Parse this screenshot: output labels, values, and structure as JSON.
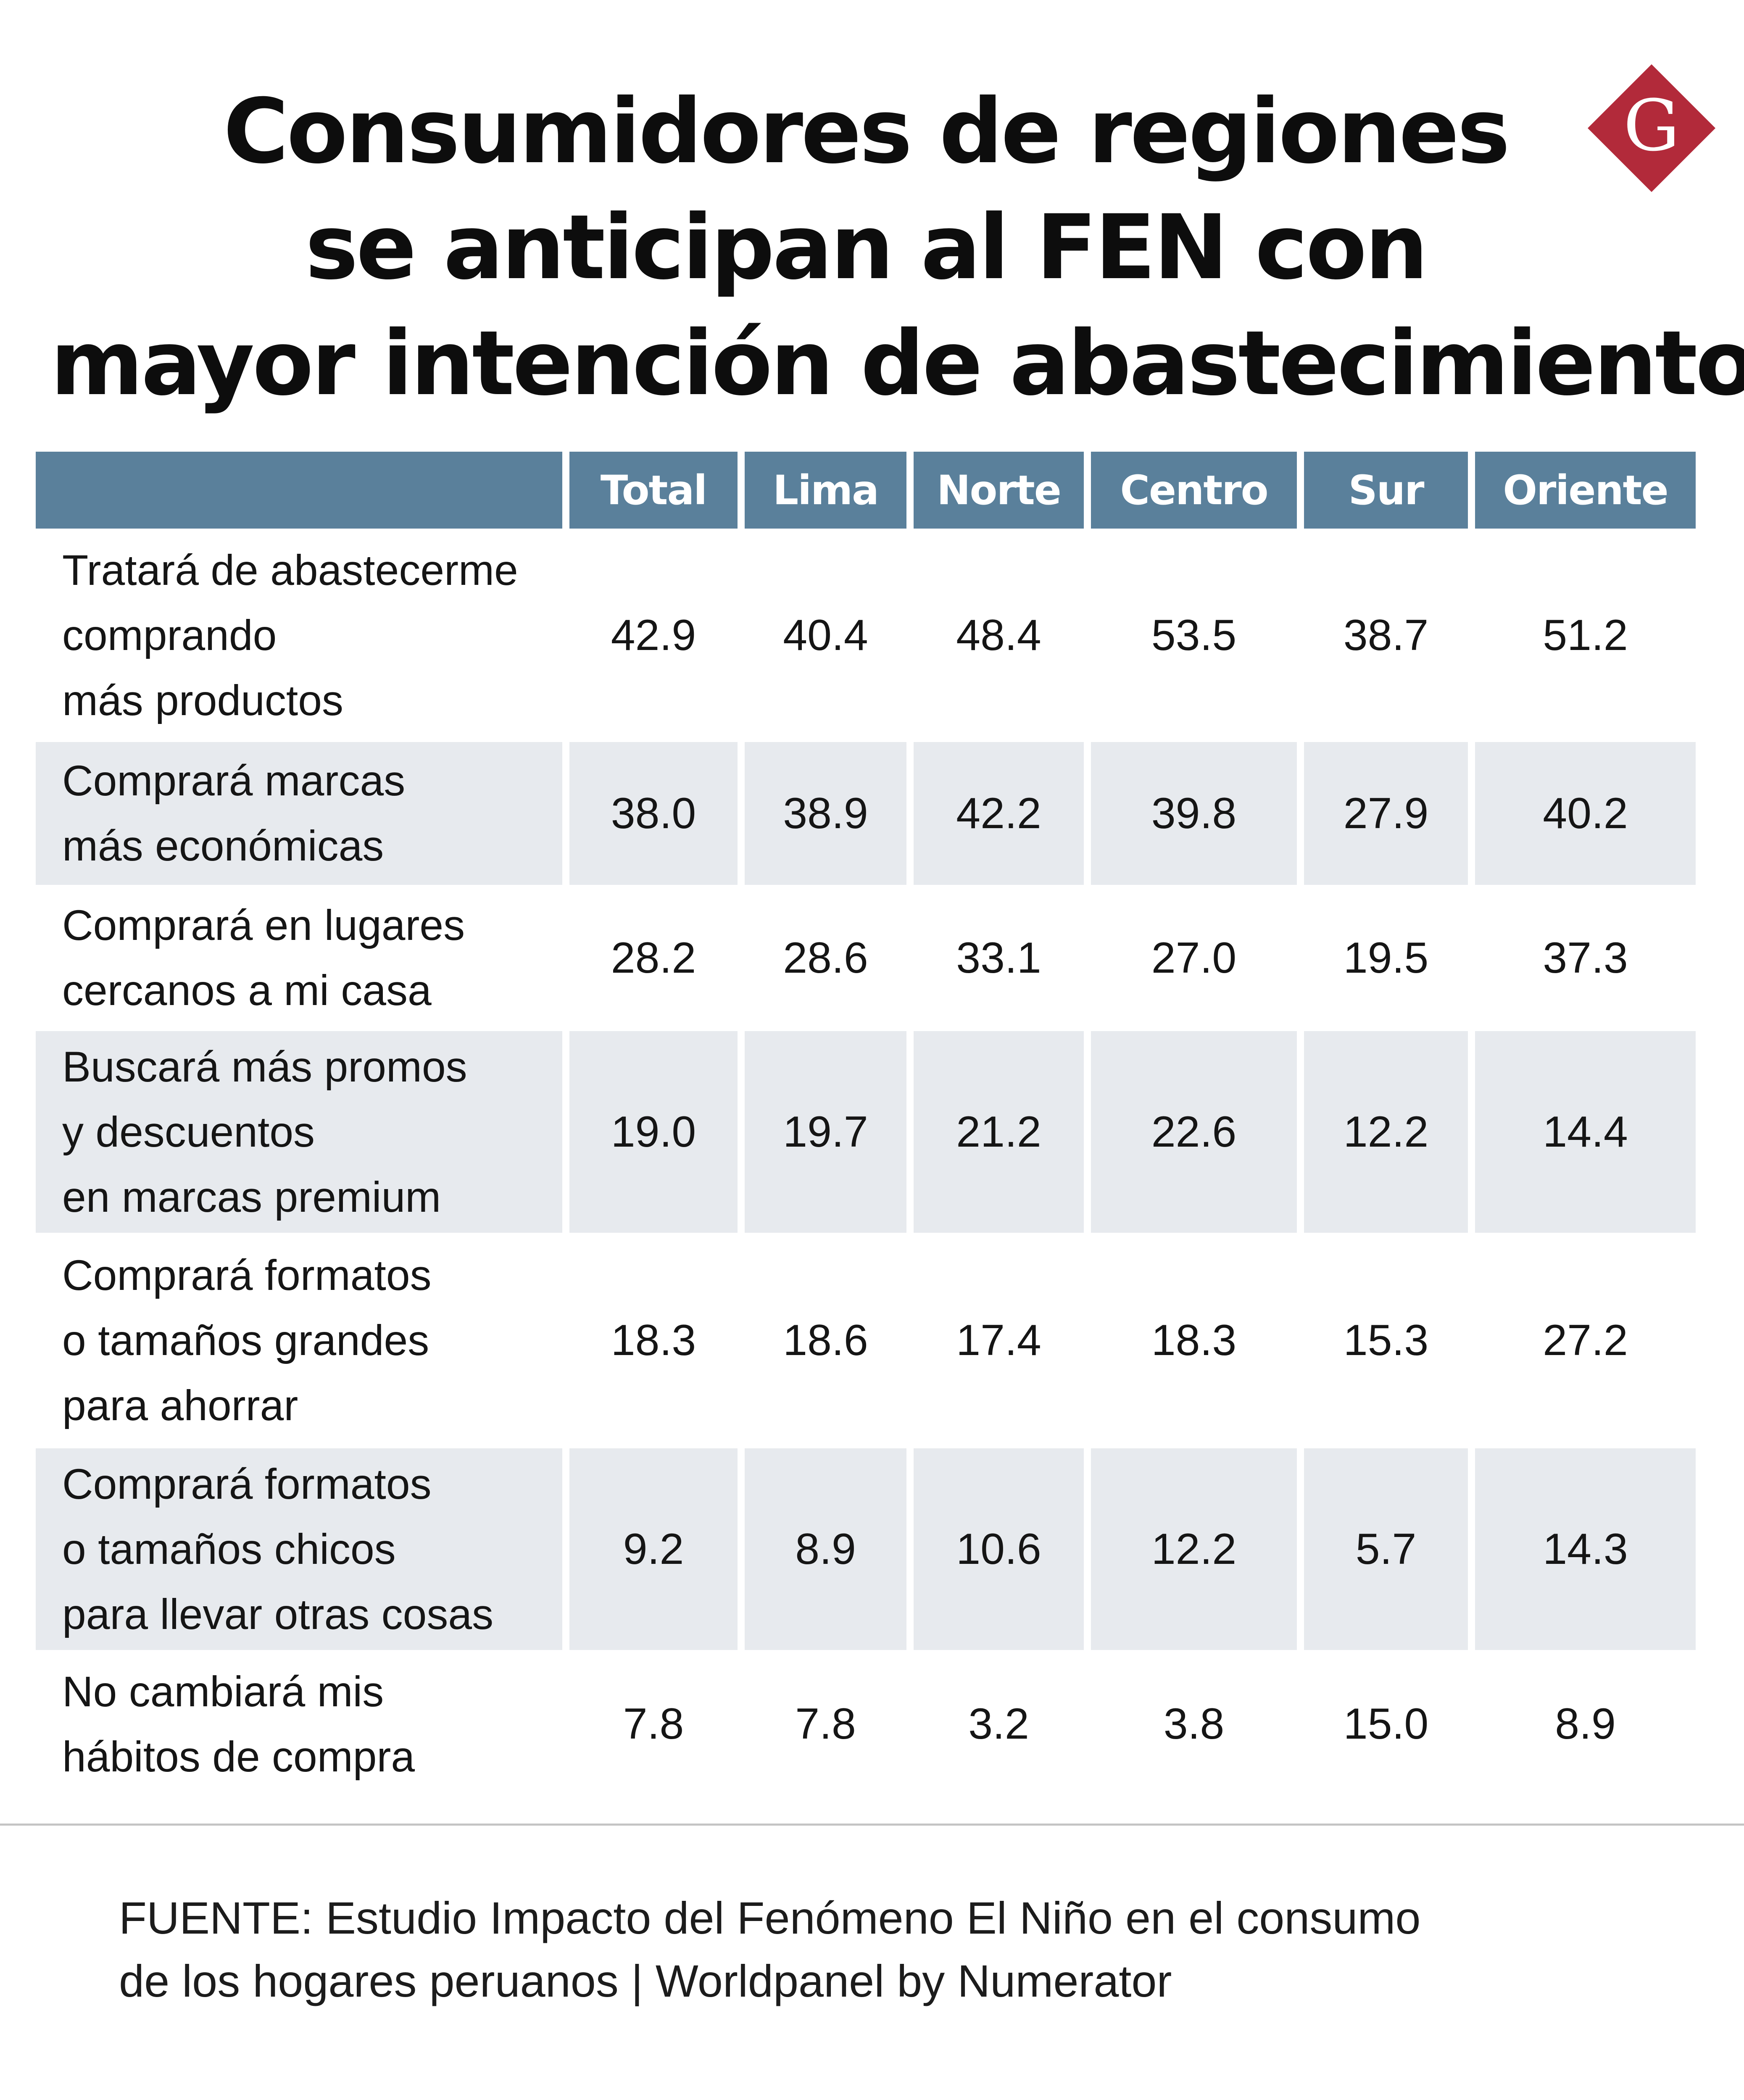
{
  "chart_data": {
    "type": "table",
    "title": "Consumidores de regiones se anticipan al FEN con mayor intención de abastecimiento",
    "title_lines": [
      "Consumidores de regiones",
      "se anticipan al FEN con",
      "mayor intención de abastecimiento"
    ],
    "columns": [
      "Total",
      "Lima",
      "Norte",
      "Centro",
      "Sur",
      "Oriente"
    ],
    "rows": [
      {
        "label": "Tratará de abastecerme\ncomprando\nmás productos",
        "values": [
          "42.9",
          "40.4",
          "48.4",
          "53.5",
          "38.7",
          "51.2"
        ]
      },
      {
        "label": "Comprará marcas\nmás económicas",
        "values": [
          "38.0",
          "38.9",
          "42.2",
          "39.8",
          "27.9",
          "40.2"
        ]
      },
      {
        "label": "Comprará en lugares\ncercanos a mi casa",
        "values": [
          "28.2",
          "28.6",
          "33.1",
          "27.0",
          "19.5",
          "37.3"
        ]
      },
      {
        "label": "Buscará más promos\ny descuentos\nen marcas premium",
        "values": [
          "19.0",
          "19.7",
          "21.2",
          "22.6",
          "12.2",
          "14.4"
        ]
      },
      {
        "label": "Comprará formatos\no tamaños grandes\npara ahorrar",
        "values": [
          "18.3",
          "18.6",
          "17.4",
          "18.3",
          "15.3",
          "27.2"
        ]
      },
      {
        "label": "Comprará formatos\no tamaños chicos\npara llevar otras cosas",
        "values": [
          "9.2",
          "8.9",
          "10.6",
          "12.2",
          "5.7",
          "14.3"
        ]
      },
      {
        "label": "No cambiará mis\nhábitos de compra",
        "values": [
          "7.8",
          "7.8",
          "3.2",
          "3.8",
          "15.0",
          "8.9"
        ]
      }
    ]
  },
  "logo": {
    "letter": "G",
    "color": "#b22a3a"
  },
  "colors": {
    "header_bg": "#5a809b",
    "row_shade": "#e7eaee"
  },
  "source_lines": [
    "FUENTE: Estudio Impacto del Fenómeno El Niño en el consumo",
    "de los hogares peruanos | Worldpanel by Numerator"
  ]
}
